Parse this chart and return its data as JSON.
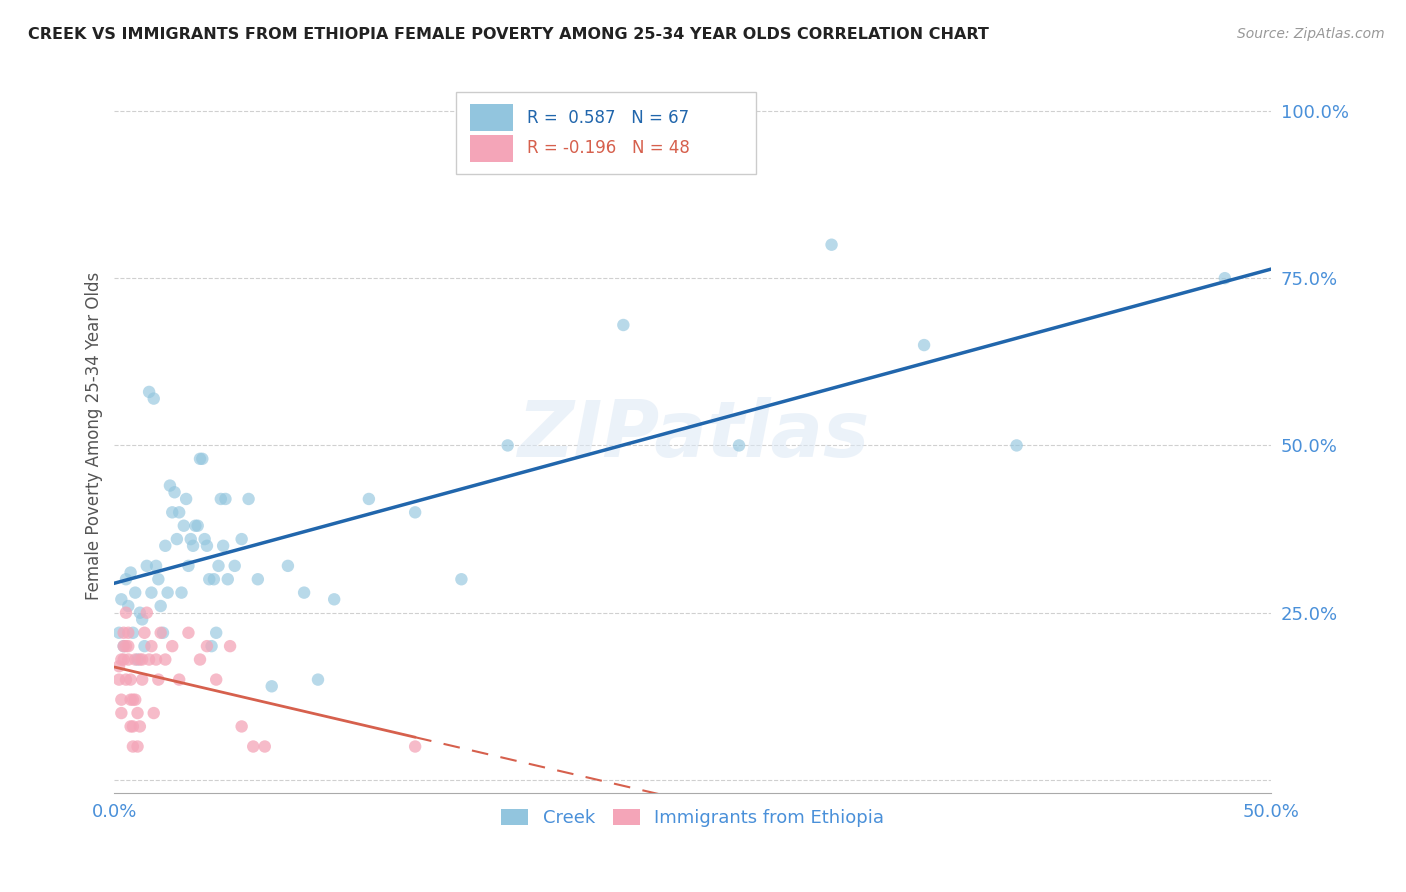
{
  "title": "CREEK VS IMMIGRANTS FROM ETHIOPIA FEMALE POVERTY AMONG 25-34 YEAR OLDS CORRELATION CHART",
  "source": "Source: ZipAtlas.com",
  "ylabel": "Female Poverty Among 25-34 Year Olds",
  "watermark": "ZIPatlas",
  "xlim": [
    0.0,
    0.5
  ],
  "ylim": [
    -0.02,
    1.05
  ],
  "xticks": [
    0.0,
    0.1,
    0.2,
    0.3,
    0.4,
    0.5
  ],
  "xticklabels": [
    "0.0%",
    "",
    "",
    "",
    "",
    "50.0%"
  ],
  "yticks": [
    0.0,
    0.25,
    0.5,
    0.75,
    1.0
  ],
  "yticklabels": [
    "",
    "25.0%",
    "50.0%",
    "75.0%",
    "100.0%"
  ],
  "creek_color": "#92c5de",
  "ethiopia_color": "#f4a5b8",
  "creek_line_color": "#2166ac",
  "ethiopia_line_color": "#d6604d",
  "creek_R": 0.587,
  "creek_N": 67,
  "ethiopia_R": -0.196,
  "ethiopia_N": 48,
  "background_color": "#ffffff",
  "grid_color": "#d0d0d0",
  "title_color": "#222222",
  "axis_label_color": "#4a90d9",
  "creek_scatter": [
    [
      0.002,
      0.22
    ],
    [
      0.003,
      0.27
    ],
    [
      0.004,
      0.2
    ],
    [
      0.005,
      0.3
    ],
    [
      0.006,
      0.26
    ],
    [
      0.007,
      0.31
    ],
    [
      0.008,
      0.22
    ],
    [
      0.009,
      0.28
    ],
    [
      0.01,
      0.18
    ],
    [
      0.011,
      0.25
    ],
    [
      0.012,
      0.24
    ],
    [
      0.013,
      0.2
    ],
    [
      0.014,
      0.32
    ],
    [
      0.015,
      0.58
    ],
    [
      0.016,
      0.28
    ],
    [
      0.017,
      0.57
    ],
    [
      0.018,
      0.32
    ],
    [
      0.019,
      0.3
    ],
    [
      0.02,
      0.26
    ],
    [
      0.021,
      0.22
    ],
    [
      0.022,
      0.35
    ],
    [
      0.023,
      0.28
    ],
    [
      0.024,
      0.44
    ],
    [
      0.025,
      0.4
    ],
    [
      0.026,
      0.43
    ],
    [
      0.027,
      0.36
    ],
    [
      0.028,
      0.4
    ],
    [
      0.029,
      0.28
    ],
    [
      0.03,
      0.38
    ],
    [
      0.031,
      0.42
    ],
    [
      0.032,
      0.32
    ],
    [
      0.033,
      0.36
    ],
    [
      0.034,
      0.35
    ],
    [
      0.035,
      0.38
    ],
    [
      0.036,
      0.38
    ],
    [
      0.037,
      0.48
    ],
    [
      0.038,
      0.48
    ],
    [
      0.039,
      0.36
    ],
    [
      0.04,
      0.35
    ],
    [
      0.041,
      0.3
    ],
    [
      0.042,
      0.2
    ],
    [
      0.043,
      0.3
    ],
    [
      0.044,
      0.22
    ],
    [
      0.045,
      0.32
    ],
    [
      0.046,
      0.42
    ],
    [
      0.047,
      0.35
    ],
    [
      0.048,
      0.42
    ],
    [
      0.049,
      0.3
    ],
    [
      0.052,
      0.32
    ],
    [
      0.055,
      0.36
    ],
    [
      0.058,
      0.42
    ],
    [
      0.062,
      0.3
    ],
    [
      0.068,
      0.14
    ],
    [
      0.075,
      0.32
    ],
    [
      0.082,
      0.28
    ],
    [
      0.088,
      0.15
    ],
    [
      0.095,
      0.27
    ],
    [
      0.11,
      0.42
    ],
    [
      0.13,
      0.4
    ],
    [
      0.15,
      0.3
    ],
    [
      0.17,
      0.5
    ],
    [
      0.22,
      0.68
    ],
    [
      0.27,
      0.5
    ],
    [
      0.31,
      0.8
    ],
    [
      0.35,
      0.65
    ],
    [
      0.39,
      0.5
    ],
    [
      0.48,
      0.75
    ]
  ],
  "ethiopia_scatter": [
    [
      0.002,
      0.17
    ],
    [
      0.002,
      0.15
    ],
    [
      0.003,
      0.18
    ],
    [
      0.003,
      0.12
    ],
    [
      0.003,
      0.1
    ],
    [
      0.004,
      0.2
    ],
    [
      0.004,
      0.22
    ],
    [
      0.004,
      0.18
    ],
    [
      0.005,
      0.15
    ],
    [
      0.005,
      0.2
    ],
    [
      0.005,
      0.25
    ],
    [
      0.006,
      0.22
    ],
    [
      0.006,
      0.2
    ],
    [
      0.006,
      0.18
    ],
    [
      0.007,
      0.12
    ],
    [
      0.007,
      0.08
    ],
    [
      0.007,
      0.15
    ],
    [
      0.008,
      0.12
    ],
    [
      0.008,
      0.08
    ],
    [
      0.008,
      0.05
    ],
    [
      0.009,
      0.18
    ],
    [
      0.009,
      0.12
    ],
    [
      0.01,
      0.05
    ],
    [
      0.01,
      0.1
    ],
    [
      0.011,
      0.08
    ],
    [
      0.011,
      0.18
    ],
    [
      0.012,
      0.15
    ],
    [
      0.012,
      0.18
    ],
    [
      0.013,
      0.22
    ],
    [
      0.014,
      0.25
    ],
    [
      0.015,
      0.18
    ],
    [
      0.016,
      0.2
    ],
    [
      0.017,
      0.1
    ],
    [
      0.018,
      0.18
    ],
    [
      0.019,
      0.15
    ],
    [
      0.02,
      0.22
    ],
    [
      0.022,
      0.18
    ],
    [
      0.025,
      0.2
    ],
    [
      0.028,
      0.15
    ],
    [
      0.032,
      0.22
    ],
    [
      0.037,
      0.18
    ],
    [
      0.04,
      0.2
    ],
    [
      0.044,
      0.15
    ],
    [
      0.05,
      0.2
    ],
    [
      0.055,
      0.08
    ],
    [
      0.06,
      0.05
    ],
    [
      0.065,
      0.05
    ],
    [
      0.13,
      0.05
    ]
  ]
}
